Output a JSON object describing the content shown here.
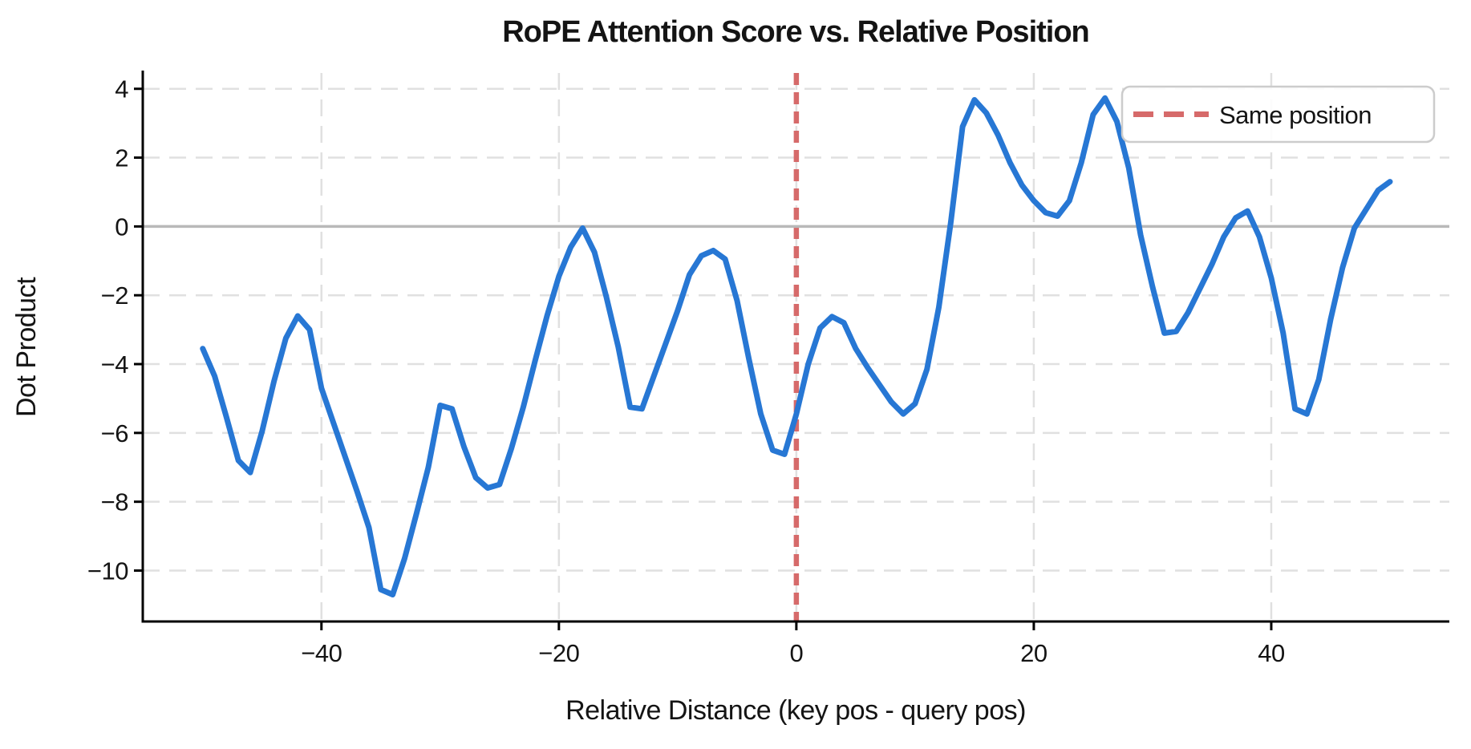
{
  "figure": {
    "background": "#ffffff"
  },
  "chart_data": {
    "type": "line",
    "title": "RoPE Attention Score vs. Relative Position",
    "xlabel": "Relative Distance (key pos - query pos)",
    "ylabel": "Dot Product",
    "xlim": [
      -55.05,
      55.0
    ],
    "ylim": [
      -11.48,
      4.46
    ],
    "grid": true,
    "x_ticks": [
      -40,
      -20,
      0,
      20,
      40
    ],
    "x_tick_labels": [
      "−40",
      "−20",
      "0",
      "20",
      "40"
    ],
    "y_ticks": [
      -10,
      -8,
      -6,
      -4,
      -2,
      0,
      2,
      4
    ],
    "y_tick_labels": [
      "−10",
      "−8",
      "−6",
      "−4",
      "−2",
      "0",
      "2",
      "4"
    ],
    "legend": {
      "position": "upper right",
      "entries": [
        {
          "label": "Same position",
          "style": "dashed",
          "color": "#d66a6a"
        }
      ]
    },
    "annotations": [
      {
        "type": "vline",
        "x": 0,
        "style": "dashed",
        "color": "#d66a6a",
        "meaning": "Same position"
      },
      {
        "type": "hline",
        "y": 0,
        "style": "solid",
        "color": "#b9b9b9"
      }
    ],
    "series": [
      {
        "name": "rope_dot_product",
        "color": "#2777d4",
        "x": [
          -50,
          -49,
          -48,
          -47,
          -46,
          -45,
          -44,
          -43,
          -42,
          -41,
          -40,
          -39,
          -38,
          -37,
          -36,
          -35,
          -34,
          -33,
          -32,
          -31,
          -30,
          -29,
          -28,
          -27,
          -26,
          -25,
          -24,
          -23,
          -22,
          -21,
          -20,
          -19,
          -18,
          -17,
          -16,
          -15,
          -14,
          -13,
          -12,
          -11,
          -10,
          -9,
          -8,
          -7,
          -6,
          -5,
          -4,
          -3,
          -2,
          -1,
          0,
          1,
          2,
          3,
          4,
          5,
          6,
          7,
          8,
          9,
          10,
          11,
          12,
          13,
          14,
          15,
          16,
          17,
          18,
          19,
          20,
          21,
          22,
          23,
          24,
          25,
          26,
          27,
          28,
          29,
          30,
          31,
          32,
          33,
          34,
          35,
          36,
          37,
          38,
          39,
          40,
          41,
          42,
          43,
          44,
          45,
          46,
          47,
          48,
          49,
          50
        ],
        "y": [
          -3.55,
          -4.35,
          -5.55,
          -6.8,
          -7.15,
          -5.95,
          -4.5,
          -3.25,
          -2.6,
          -3.0,
          -4.7,
          -5.7,
          -6.7,
          -7.7,
          -8.75,
          -10.55,
          -10.7,
          -9.65,
          -8.35,
          -7.0,
          -5.2,
          -5.3,
          -6.4,
          -7.3,
          -7.6,
          -7.5,
          -6.45,
          -5.25,
          -3.9,
          -2.6,
          -1.45,
          -0.6,
          -0.05,
          -0.75,
          -2.05,
          -3.5,
          -5.25,
          -5.3,
          -4.35,
          -3.4,
          -2.45,
          -1.4,
          -0.85,
          -0.7,
          -0.95,
          -2.15,
          -3.85,
          -5.45,
          -6.5,
          -6.62,
          -5.45,
          -4.0,
          -2.95,
          -2.62,
          -2.8,
          -3.55,
          -4.1,
          -4.6,
          -5.1,
          -5.45,
          -5.15,
          -4.15,
          -2.35,
          0.1,
          2.9,
          3.68,
          3.3,
          2.65,
          1.85,
          1.2,
          0.75,
          0.4,
          0.3,
          0.75,
          1.85,
          3.25,
          3.73,
          3.05,
          1.7,
          -0.25,
          -1.75,
          -3.1,
          -3.05,
          -2.5,
          -1.8,
          -1.1,
          -0.3,
          0.25,
          0.45,
          -0.3,
          -1.5,
          -3.1,
          -5.3,
          -5.45,
          -4.45,
          -2.7,
          -1.2,
          -0.05,
          0.5,
          1.05,
          1.3
        ]
      }
    ],
    "colors": {
      "line": "#2777d4",
      "vline": "#d66a6a",
      "zero_line": "#b9b9b9",
      "grid": "#e0e0e0",
      "spine": "#000000",
      "text": "#141414",
      "legend_border": "#cccccc"
    }
  }
}
